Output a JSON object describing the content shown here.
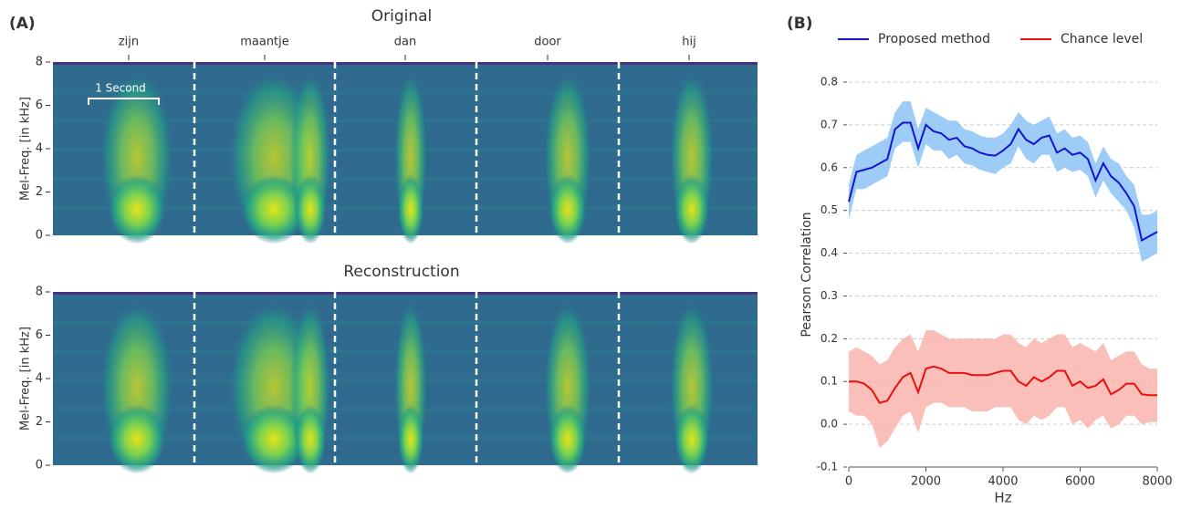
{
  "chart_data": [
    {
      "type": "spectrogram",
      "label": "(A)",
      "words": [
        "zijn",
        "maantje",
        "dan",
        "door",
        "hij"
      ],
      "annotation": "1 Second",
      "panels": [
        {
          "title": "Original",
          "ylabel": "Mel-Freq. [in kHz]",
          "ylim": [
            0,
            8
          ],
          "yticks": [
            0,
            2,
            4,
            6,
            8
          ]
        },
        {
          "title": "Reconstruction",
          "ylabel": "Mel-Freq. [in kHz]",
          "ylim": [
            0,
            8
          ],
          "yticks": [
            0,
            2,
            4,
            6,
            8
          ]
        }
      ]
    },
    {
      "type": "line",
      "label": "(B)",
      "xlabel": "Hz",
      "ylabel": "Pearson Correlation",
      "xlim": [
        0,
        8000
      ],
      "ylim": [
        -0.1,
        0.8
      ],
      "xticks": [
        0,
        2000,
        4000,
        6000,
        8000
      ],
      "yticks": [
        -0.1,
        {
          "value": 0,
          "label": "0.0"
        },
        0.1,
        0.2,
        0.3,
        0.4,
        0.5,
        0.6,
        0.7,
        0.8
      ],
      "grid": true,
      "x": [
        0,
        200,
        400,
        600,
        800,
        1000,
        1200,
        1400,
        1600,
        1800,
        2000,
        2200,
        2400,
        2600,
        2800,
        3000,
        3200,
        3400,
        3600,
        3800,
        4000,
        4200,
        4400,
        4600,
        4800,
        5000,
        5200,
        5400,
        5600,
        5800,
        6000,
        6200,
        6400,
        6600,
        6800,
        7000,
        7200,
        7400,
        7600,
        7800,
        8000
      ],
      "series": [
        {
          "name": "Proposed method",
          "color": "#1515d0",
          "band_color": "#8cc4f6",
          "values": [
            0.52,
            0.59,
            0.595,
            0.6,
            0.61,
            0.62,
            0.69,
            0.705,
            0.705,
            0.645,
            0.7,
            0.685,
            0.68,
            0.665,
            0.67,
            0.65,
            0.645,
            0.635,
            0.63,
            0.628,
            0.64,
            0.655,
            0.69,
            0.665,
            0.655,
            0.67,
            0.675,
            0.635,
            0.645,
            0.63,
            0.635,
            0.62,
            0.57,
            0.61,
            0.58,
            0.565,
            0.54,
            0.51,
            0.43,
            0.44,
            0.45
          ],
          "upper": [
            0.56,
            0.63,
            0.64,
            0.65,
            0.66,
            0.67,
            0.73,
            0.755,
            0.755,
            0.69,
            0.74,
            0.73,
            0.72,
            0.71,
            0.71,
            0.69,
            0.685,
            0.675,
            0.67,
            0.67,
            0.68,
            0.7,
            0.73,
            0.71,
            0.7,
            0.71,
            0.72,
            0.68,
            0.69,
            0.67,
            0.675,
            0.66,
            0.61,
            0.65,
            0.62,
            0.61,
            0.58,
            0.56,
            0.49,
            0.49,
            0.5
          ],
          "lower": [
            0.48,
            0.55,
            0.55,
            0.56,
            0.57,
            0.58,
            0.645,
            0.66,
            0.66,
            0.6,
            0.655,
            0.64,
            0.64,
            0.62,
            0.63,
            0.61,
            0.605,
            0.595,
            0.59,
            0.585,
            0.6,
            0.61,
            0.65,
            0.62,
            0.61,
            0.63,
            0.63,
            0.59,
            0.6,
            0.59,
            0.595,
            0.58,
            0.53,
            0.57,
            0.54,
            0.52,
            0.5,
            0.46,
            0.38,
            0.39,
            0.4
          ]
        },
        {
          "name": "Chance level",
          "color": "#e81010",
          "band_color": "#f8b4ac",
          "values": [
            0.1,
            0.1,
            0.095,
            0.08,
            0.05,
            0.055,
            0.085,
            0.11,
            0.12,
            0.075,
            0.13,
            0.135,
            0.13,
            0.12,
            0.12,
            0.12,
            0.115,
            0.115,
            0.115,
            0.12,
            0.125,
            0.125,
            0.1,
            0.09,
            0.11,
            0.1,
            0.11,
            0.125,
            0.125,
            0.09,
            0.1,
            0.085,
            0.09,
            0.105,
            0.07,
            0.08,
            0.095,
            0.095,
            0.07,
            0.068,
            0.068
          ],
          "upper": [
            0.17,
            0.18,
            0.17,
            0.16,
            0.14,
            0.15,
            0.18,
            0.2,
            0.21,
            0.17,
            0.22,
            0.22,
            0.21,
            0.2,
            0.2,
            0.2,
            0.2,
            0.2,
            0.2,
            0.2,
            0.21,
            0.21,
            0.19,
            0.18,
            0.2,
            0.19,
            0.2,
            0.21,
            0.21,
            0.18,
            0.19,
            0.18,
            0.17,
            0.19,
            0.15,
            0.16,
            0.17,
            0.17,
            0.14,
            0.13,
            0.13
          ],
          "lower": [
            0.03,
            0.02,
            0.02,
            0.0,
            -0.055,
            -0.04,
            -0.01,
            0.02,
            0.03,
            -0.02,
            0.04,
            0.05,
            0.05,
            0.04,
            0.04,
            0.04,
            0.03,
            0.03,
            0.03,
            0.04,
            0.04,
            0.04,
            0.01,
            0.0,
            0.02,
            0.01,
            0.02,
            0.04,
            0.04,
            0.0,
            0.01,
            -0.01,
            0.01,
            0.02,
            -0.01,
            0.0,
            0.02,
            0.02,
            0.0,
            0.005,
            0.005
          ]
        }
      ]
    }
  ]
}
